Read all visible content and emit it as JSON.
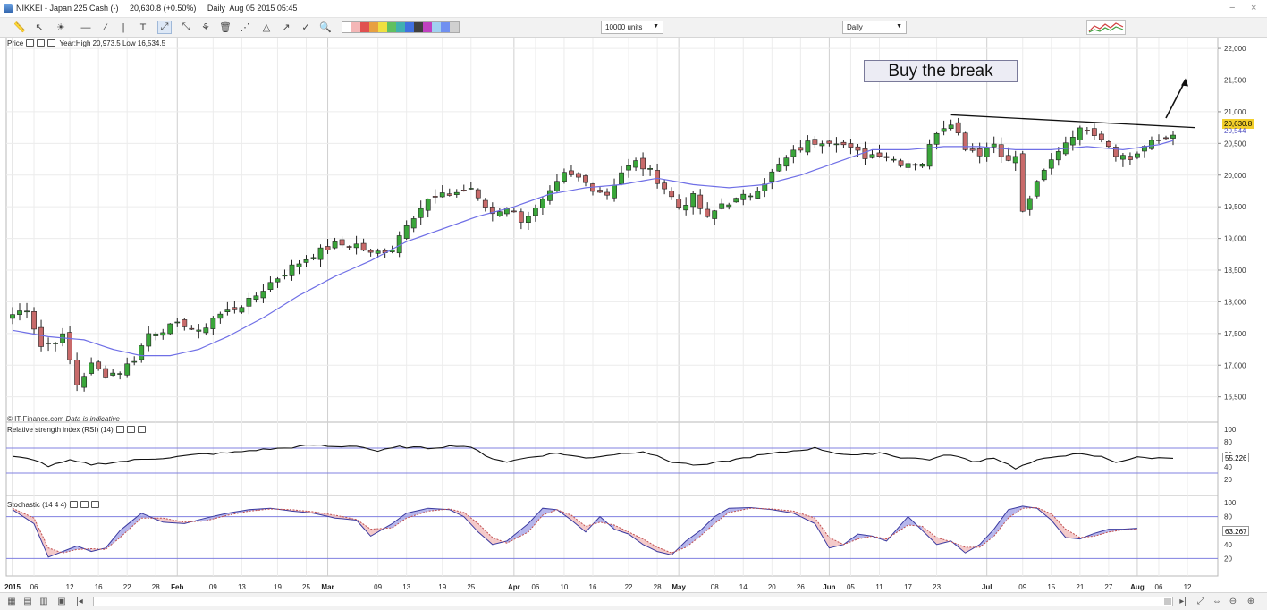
{
  "window": {
    "title": "NIKKEI - Japan 225 Cash (-)     20,630.8 (+0.50%)     Daily  Aug 05 2015 05:45",
    "minimize": "−",
    "close": "×"
  },
  "toolbar": {
    "icons": [
      "ruler-icon",
      "pointer-icon",
      "sun-icon",
      "horizontal-line-icon",
      "trendline-icon",
      "vertical-line-icon",
      "text-tool-icon",
      "fib-icon",
      "fib-fan-icon",
      "pattern-icon",
      "delete-icon",
      "channel-icon",
      "triangle-icon",
      "arrow-icon",
      "check-icon",
      "zoom-icon"
    ],
    "units_dropdown": "10000 units",
    "period_dropdown": "Daily",
    "palette_colors": [
      "#ffffff",
      "#f4b6b6",
      "#e05050",
      "#e8a040",
      "#f0e040",
      "#60c060",
      "#40b0b0",
      "#4070e0",
      "#404040",
      "#c040c0",
      "#a0d0f0",
      "#7090f0",
      "#d0d0d0"
    ]
  },
  "annotation": "Buy the break",
  "price_panel": {
    "label": "Price",
    "year_range": "Year:High 20,973.5 Low 16,534.5",
    "copyright": "© IT-Finance.com",
    "disclaimer": "Data is indicative",
    "last_price": "20,630.8",
    "ma_value": "20,544",
    "colors": {
      "up": "#3aa63a",
      "down": "#c86a6a",
      "ma": "#6f6fe6",
      "last_price_bg": "#f2cf2a"
    }
  },
  "rsi_panel": {
    "label": "Relative strength index (RSI) (14)",
    "value": "55.226",
    "ticks": [
      "100",
      "80",
      "60",
      "40",
      "20"
    ]
  },
  "stoch_panel": {
    "label": "Stochastic (14 4 4)",
    "value": "63.267",
    "ticks": [
      "100",
      "80",
      "60",
      "40",
      "20"
    ]
  },
  "chart_data": {
    "type": "candlestick",
    "instrument": "NIKKEI - Japan 225 Cash",
    "y_ticks": [
      "22,000",
      "21,500",
      "21,000",
      "20,500",
      "20,000",
      "19,500",
      "19,000",
      "18,500",
      "18,000",
      "17,500",
      "17,000",
      "16,500"
    ],
    "ylim": [
      16100,
      22100
    ],
    "x_labels": [
      {
        "d": 0,
        "t": "2015",
        "bold": true
      },
      {
        "d": 3,
        "t": "06"
      },
      {
        "d": 8,
        "t": "12"
      },
      {
        "d": 12,
        "t": "16"
      },
      {
        "d": 16,
        "t": "22"
      },
      {
        "d": 20,
        "t": "28"
      },
      {
        "d": 23,
        "t": "Feb",
        "bold": true
      },
      {
        "d": 28,
        "t": "09"
      },
      {
        "d": 32,
        "t": "13"
      },
      {
        "d": 37,
        "t": "19"
      },
      {
        "d": 41,
        "t": "25"
      },
      {
        "d": 44,
        "t": "Mar",
        "bold": true
      },
      {
        "d": 51,
        "t": "09"
      },
      {
        "d": 55,
        "t": "13"
      },
      {
        "d": 60,
        "t": "19"
      },
      {
        "d": 64,
        "t": "25"
      },
      {
        "d": 70,
        "t": "Apr",
        "bold": true
      },
      {
        "d": 73,
        "t": "06"
      },
      {
        "d": 77,
        "t": "10"
      },
      {
        "d": 81,
        "t": "16"
      },
      {
        "d": 86,
        "t": "22"
      },
      {
        "d": 90,
        "t": "28"
      },
      {
        "d": 93,
        "t": "May",
        "bold": true
      },
      {
        "d": 98,
        "t": "08"
      },
      {
        "d": 102,
        "t": "14"
      },
      {
        "d": 106,
        "t": "20"
      },
      {
        "d": 110,
        "t": "26"
      },
      {
        "d": 114,
        "t": "Jun",
        "bold": true
      },
      {
        "d": 117,
        "t": "05"
      },
      {
        "d": 121,
        "t": "11"
      },
      {
        "d": 125,
        "t": "17"
      },
      {
        "d": 129,
        "t": "23"
      },
      {
        "d": 136,
        "t": "Jul",
        "bold": true
      },
      {
        "d": 141,
        "t": "09"
      },
      {
        "d": 145,
        "t": "15"
      },
      {
        "d": 149,
        "t": "21"
      },
      {
        "d": 153,
        "t": "27"
      },
      {
        "d": 157,
        "t": "Aug",
        "bold": true
      },
      {
        "d": 160,
        "t": "06"
      },
      {
        "d": 164,
        "t": "12"
      }
    ],
    "anchors": [
      [
        0,
        17800
      ],
      [
        2,
        17900
      ],
      [
        4,
        17300
      ],
      [
        7,
        17450
      ],
      [
        9,
        16700
      ],
      [
        11,
        17000
      ],
      [
        13,
        16850
      ],
      [
        15,
        16900
      ],
      [
        17,
        17100
      ],
      [
        19,
        17500
      ],
      [
        22,
        17600
      ],
      [
        24,
        17650
      ],
      [
        26,
        17500
      ],
      [
        28,
        17750
      ],
      [
        31,
        17900
      ],
      [
        33,
        18000
      ],
      [
        36,
        18300
      ],
      [
        39,
        18550
      ],
      [
        42,
        18750
      ],
      [
        45,
        18900
      ],
      [
        48,
        18900
      ],
      [
        50,
        18750
      ],
      [
        53,
        18850
      ],
      [
        55,
        19250
      ],
      [
        58,
        19600
      ],
      [
        61,
        19700
      ],
      [
        64,
        19800
      ],
      [
        65,
        19600
      ],
      [
        67,
        19400
      ],
      [
        69,
        19500
      ],
      [
        71,
        19300
      ],
      [
        73,
        19450
      ],
      [
        75,
        19700
      ],
      [
        77,
        20000
      ],
      [
        79,
        19950
      ],
      [
        81,
        19800
      ],
      [
        83,
        19700
      ],
      [
        85,
        20050
      ],
      [
        87,
        20200
      ],
      [
        89,
        20050
      ],
      [
        91,
        19800
      ],
      [
        93,
        19500
      ],
      [
        95,
        19650
      ],
      [
        97,
        19300
      ],
      [
        99,
        19550
      ],
      [
        101,
        19600
      ],
      [
        103,
        19700
      ],
      [
        105,
        19900
      ],
      [
        107,
        20150
      ],
      [
        109,
        20350
      ],
      [
        111,
        20500
      ],
      [
        113,
        20550
      ],
      [
        115,
        20550
      ],
      [
        117,
        20400
      ],
      [
        119,
        20300
      ],
      [
        121,
        20350
      ],
      [
        124,
        20200
      ],
      [
        127,
        20200
      ],
      [
        129,
        20700
      ],
      [
        131,
        20850
      ],
      [
        133,
        20450
      ],
      [
        135,
        20350
      ],
      [
        137,
        20500
      ],
      [
        139,
        20200
      ],
      [
        140,
        20300
      ],
      [
        141,
        19400
      ],
      [
        142,
        19650
      ],
      [
        144,
        20050
      ],
      [
        146,
        20400
      ],
      [
        148,
        20650
      ],
      [
        150,
        20750
      ],
      [
        152,
        20600
      ],
      [
        154,
        20350
      ],
      [
        156,
        20250
      ],
      [
        158,
        20450
      ],
      [
        160,
        20550
      ],
      [
        162,
        20630
      ]
    ],
    "ma_anchors": [
      [
        0,
        17550
      ],
      [
        5,
        17450
      ],
      [
        10,
        17400
      ],
      [
        14,
        17250
      ],
      [
        18,
        17150
      ],
      [
        22,
        17150
      ],
      [
        26,
        17250
      ],
      [
        30,
        17450
      ],
      [
        35,
        17750
      ],
      [
        40,
        18100
      ],
      [
        45,
        18400
      ],
      [
        50,
        18650
      ],
      [
        55,
        18950
      ],
      [
        60,
        19150
      ],
      [
        65,
        19350
      ],
      [
        70,
        19500
      ],
      [
        75,
        19700
      ],
      [
        80,
        19800
      ],
      [
        85,
        19850
      ],
      [
        90,
        19950
      ],
      [
        95,
        19850
      ],
      [
        100,
        19800
      ],
      [
        105,
        19850
      ],
      [
        110,
        20000
      ],
      [
        115,
        20200
      ],
      [
        120,
        20400
      ],
      [
        125,
        20400
      ],
      [
        130,
        20450
      ],
      [
        135,
        20450
      ],
      [
        140,
        20400
      ],
      [
        145,
        20400
      ],
      [
        150,
        20450
      ],
      [
        155,
        20400
      ],
      [
        160,
        20480
      ],
      [
        162,
        20544
      ]
    ],
    "trendline": [
      [
        131,
        20950
      ],
      [
        165,
        20750
      ]
    ],
    "breakout_arrow": [
      [
        160,
        20900
      ],
      [
        162,
        21500
      ]
    ],
    "rsi_anchors": [
      [
        0,
        56
      ],
      [
        3,
        52
      ],
      [
        5,
        41
      ],
      [
        8,
        50
      ],
      [
        11,
        44
      ],
      [
        14,
        47
      ],
      [
        18,
        52
      ],
      [
        22,
        55
      ],
      [
        26,
        60
      ],
      [
        30,
        62
      ],
      [
        34,
        67
      ],
      [
        38,
        70
      ],
      [
        42,
        75
      ],
      [
        45,
        72
      ],
      [
        48,
        74
      ],
      [
        51,
        65
      ],
      [
        54,
        72
      ],
      [
        58,
        70
      ],
      [
        62,
        74
      ],
      [
        64,
        72
      ],
      [
        66,
        57
      ],
      [
        69,
        48
      ],
      [
        72,
        55
      ],
      [
        76,
        62
      ],
      [
        80,
        54
      ],
      [
        84,
        60
      ],
      [
        88,
        65
      ],
      [
        92,
        48
      ],
      [
        96,
        42
      ],
      [
        100,
        50
      ],
      [
        104,
        58
      ],
      [
        108,
        64
      ],
      [
        112,
        70
      ],
      [
        115,
        62
      ],
      [
        118,
        58
      ],
      [
        121,
        63
      ],
      [
        124,
        55
      ],
      [
        128,
        52
      ],
      [
        131,
        60
      ],
      [
        134,
        48
      ],
      [
        137,
        55
      ],
      [
        140,
        38
      ],
      [
        143,
        50
      ],
      [
        146,
        58
      ],
      [
        149,
        60
      ],
      [
        152,
        56
      ],
      [
        154,
        48
      ],
      [
        157,
        55
      ],
      [
        160,
        54
      ],
      [
        162,
        55.2
      ]
    ],
    "stoch_k": [
      [
        0,
        90
      ],
      [
        3,
        70
      ],
      [
        5,
        22
      ],
      [
        7,
        30
      ],
      [
        9,
        38
      ],
      [
        11,
        30
      ],
      [
        13,
        35
      ],
      [
        15,
        60
      ],
      [
        18,
        85
      ],
      [
        21,
        72
      ],
      [
        24,
        70
      ],
      [
        27,
        78
      ],
      [
        30,
        85
      ],
      [
        33,
        90
      ],
      [
        36,
        92
      ],
      [
        39,
        88
      ],
      [
        42,
        85
      ],
      [
        45,
        78
      ],
      [
        48,
        75
      ],
      [
        50,
        52
      ],
      [
        53,
        70
      ],
      [
        55,
        85
      ],
      [
        58,
        92
      ],
      [
        61,
        90
      ],
      [
        63,
        80
      ],
      [
        65,
        58
      ],
      [
        67,
        40
      ],
      [
        69,
        45
      ],
      [
        72,
        70
      ],
      [
        74,
        92
      ],
      [
        76,
        90
      ],
      [
        78,
        75
      ],
      [
        80,
        58
      ],
      [
        82,
        80
      ],
      [
        84,
        62
      ],
      [
        86,
        55
      ],
      [
        88,
        40
      ],
      [
        90,
        30
      ],
      [
        92,
        25
      ],
      [
        94,
        45
      ],
      [
        96,
        60
      ],
      [
        98,
        80
      ],
      [
        100,
        92
      ],
      [
        103,
        93
      ],
      [
        106,
        90
      ],
      [
        109,
        85
      ],
      [
        112,
        70
      ],
      [
        114,
        35
      ],
      [
        116,
        40
      ],
      [
        118,
        55
      ],
      [
        120,
        52
      ],
      [
        122,
        45
      ],
      [
        125,
        80
      ],
      [
        127,
        60
      ],
      [
        129,
        40
      ],
      [
        131,
        45
      ],
      [
        133,
        28
      ],
      [
        135,
        40
      ],
      [
        137,
        62
      ],
      [
        139,
        90
      ],
      [
        141,
        95
      ],
      [
        143,
        92
      ],
      [
        145,
        75
      ],
      [
        147,
        50
      ],
      [
        149,
        48
      ],
      [
        151,
        56
      ],
      [
        153,
        62
      ],
      [
        155,
        62
      ],
      [
        157,
        63.3
      ]
    ],
    "stoch_d": [
      [
        0,
        92
      ],
      [
        3,
        78
      ],
      [
        5,
        35
      ],
      [
        7,
        28
      ],
      [
        9,
        33
      ],
      [
        11,
        34
      ],
      [
        13,
        33
      ],
      [
        15,
        50
      ],
      [
        18,
        78
      ],
      [
        21,
        78
      ],
      [
        24,
        72
      ],
      [
        27,
        74
      ],
      [
        30,
        82
      ],
      [
        33,
        88
      ],
      [
        36,
        91
      ],
      [
        39,
        90
      ],
      [
        42,
        87
      ],
      [
        45,
        82
      ],
      [
        48,
        76
      ],
      [
        50,
        62
      ],
      [
        53,
        64
      ],
      [
        55,
        78
      ],
      [
        58,
        88
      ],
      [
        61,
        91
      ],
      [
        63,
        86
      ],
      [
        65,
        70
      ],
      [
        67,
        50
      ],
      [
        69,
        42
      ],
      [
        72,
        58
      ],
      [
        74,
        82
      ],
      [
        76,
        90
      ],
      [
        78,
        82
      ],
      [
        80,
        66
      ],
      [
        82,
        72
      ],
      [
        84,
        68
      ],
      [
        86,
        58
      ],
      [
        88,
        48
      ],
      [
        90,
        36
      ],
      [
        92,
        28
      ],
      [
        94,
        36
      ],
      [
        96,
        52
      ],
      [
        98,
        70
      ],
      [
        100,
        86
      ],
      [
        103,
        92
      ],
      [
        106,
        91
      ],
      [
        109,
        88
      ],
      [
        112,
        78
      ],
      [
        114,
        50
      ],
      [
        116,
        40
      ],
      [
        118,
        48
      ],
      [
        120,
        52
      ],
      [
        122,
        48
      ],
      [
        125,
        68
      ],
      [
        127,
        66
      ],
      [
        129,
        50
      ],
      [
        131,
        44
      ],
      [
        133,
        36
      ],
      [
        135,
        36
      ],
      [
        137,
        52
      ],
      [
        139,
        78
      ],
      [
        141,
        92
      ],
      [
        143,
        93
      ],
      [
        145,
        84
      ],
      [
        147,
        62
      ],
      [
        149,
        50
      ],
      [
        151,
        52
      ],
      [
        153,
        58
      ],
      [
        155,
        61
      ],
      [
        157,
        62
      ]
    ]
  }
}
